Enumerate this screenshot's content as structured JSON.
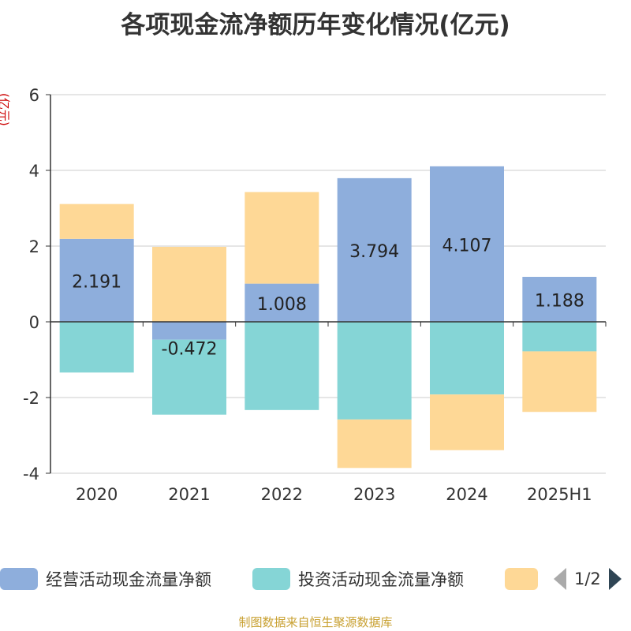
{
  "title": "各项现金流净额历年变化情况(亿元)",
  "colors": {
    "operating": "#8eaedc",
    "investing": "#85d5d6",
    "financing": "#fed896",
    "axis": "#333333",
    "grid": "#cccccc",
    "unit": "#cc0000",
    "source": "#c8a030"
  },
  "legend": {
    "items": [
      "经营活动现金流量净额",
      "投资活动现金流量净额",
      ""
    ],
    "page": "1/2",
    "prev_icon": "triangle-left-icon",
    "next_icon": "triangle-right-icon"
  },
  "footer": "制图数据来自恒生聚源数据库",
  "chart_data": {
    "type": "bar",
    "stacked": true,
    "title": "各项现金流净额历年变化情况(亿元)",
    "ylabel": "(亿元)",
    "ylim": [
      -4,
      6
    ],
    "yticks": [
      -4,
      -2,
      0,
      2,
      4,
      6
    ],
    "grid": true,
    "legend_position": "bottom",
    "categories": [
      "2020",
      "2021",
      "2022",
      "2023",
      "2024",
      "2025H1"
    ],
    "series": [
      {
        "name": "经营活动现金流量净额",
        "values": [
          2.191,
          -0.472,
          1.008,
          3.794,
          4.107,
          1.188
        ],
        "labels": [
          "2.191",
          "-0.472",
          "1.008",
          "3.794",
          "4.107",
          "1.188"
        ]
      },
      {
        "name": "投资活动现金流量净额",
        "values": [
          -1.34,
          -1.98,
          -2.33,
          -2.58,
          -1.92,
          -0.78
        ]
      },
      {
        "name": "",
        "values": [
          0.92,
          1.98,
          2.42,
          -1.28,
          -1.47,
          -1.6
        ]
      }
    ]
  }
}
